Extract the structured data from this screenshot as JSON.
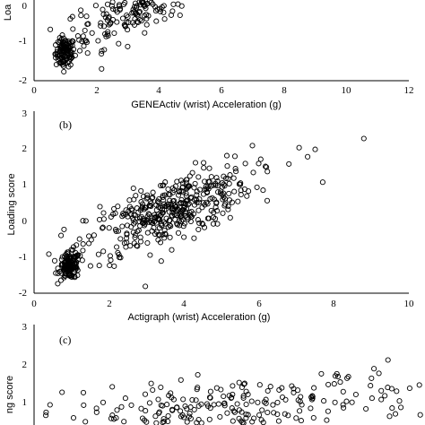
{
  "chart_data": [
    {
      "type": "scatter",
      "panel_label": "",
      "xlabel": "GENEActiv (wrist) Acceleration (g)",
      "ylabel": "Loa",
      "xlim": [
        0,
        12
      ],
      "ylim": [
        -2,
        0
      ],
      "x_ticks": [
        "0",
        "2",
        "4",
        "6",
        "8",
        "10",
        "12"
      ],
      "y_ticks": [
        "-2",
        "-1",
        "0"
      ],
      "clusters": [
        {
          "x_center": 1.0,
          "y_center": -1.3,
          "x_spread": 0.15,
          "y_spread": 0.18,
          "n": 110
        },
        {
          "x_center": 3.5,
          "y_center": -0.05,
          "x_spread": 1.3,
          "y_spread": 0.35,
          "n": 260
        }
      ],
      "grid": false
    },
    {
      "type": "scatter",
      "panel_label": "(b)",
      "xlabel": "Actigraph (wrist) Acceleration (g)",
      "ylabel": "Loading score",
      "xlim": [
        0,
        10
      ],
      "ylim": [
        -2,
        3
      ],
      "x_ticks": [
        "0",
        "2",
        "4",
        "6",
        "8",
        "10"
      ],
      "y_ticks": [
        "-2",
        "-1",
        "0",
        "1",
        "2",
        "3"
      ],
      "clusters": [
        {
          "x_center": 0.95,
          "y_center": -1.25,
          "x_spread": 0.14,
          "y_spread": 0.18,
          "n": 130
        },
        {
          "x_center": 3.6,
          "y_center": 0.25,
          "x_spread": 1.1,
          "y_spread": 0.45,
          "n": 420
        }
      ],
      "outliers": [
        [
          8.8,
          2.25
        ],
        [
          7.5,
          1.95
        ],
        [
          7.3,
          1.75
        ],
        [
          6.8,
          1.55
        ],
        [
          7.7,
          1.05
        ],
        [
          0.8,
          -0.25
        ]
      ],
      "grid": false
    },
    {
      "type": "scatter",
      "panel_label": "(c)",
      "xlabel": "",
      "ylabel": "ng score",
      "ylim": [
        0,
        3
      ],
      "y_ticks": [
        "1",
        "2",
        "3"
      ],
      "clusters": [
        {
          "x_center": 0.6,
          "y_center": 0.7,
          "x_spread": 0.32,
          "y_spread": 0.45,
          "n": 300
        }
      ],
      "grid": false
    }
  ]
}
